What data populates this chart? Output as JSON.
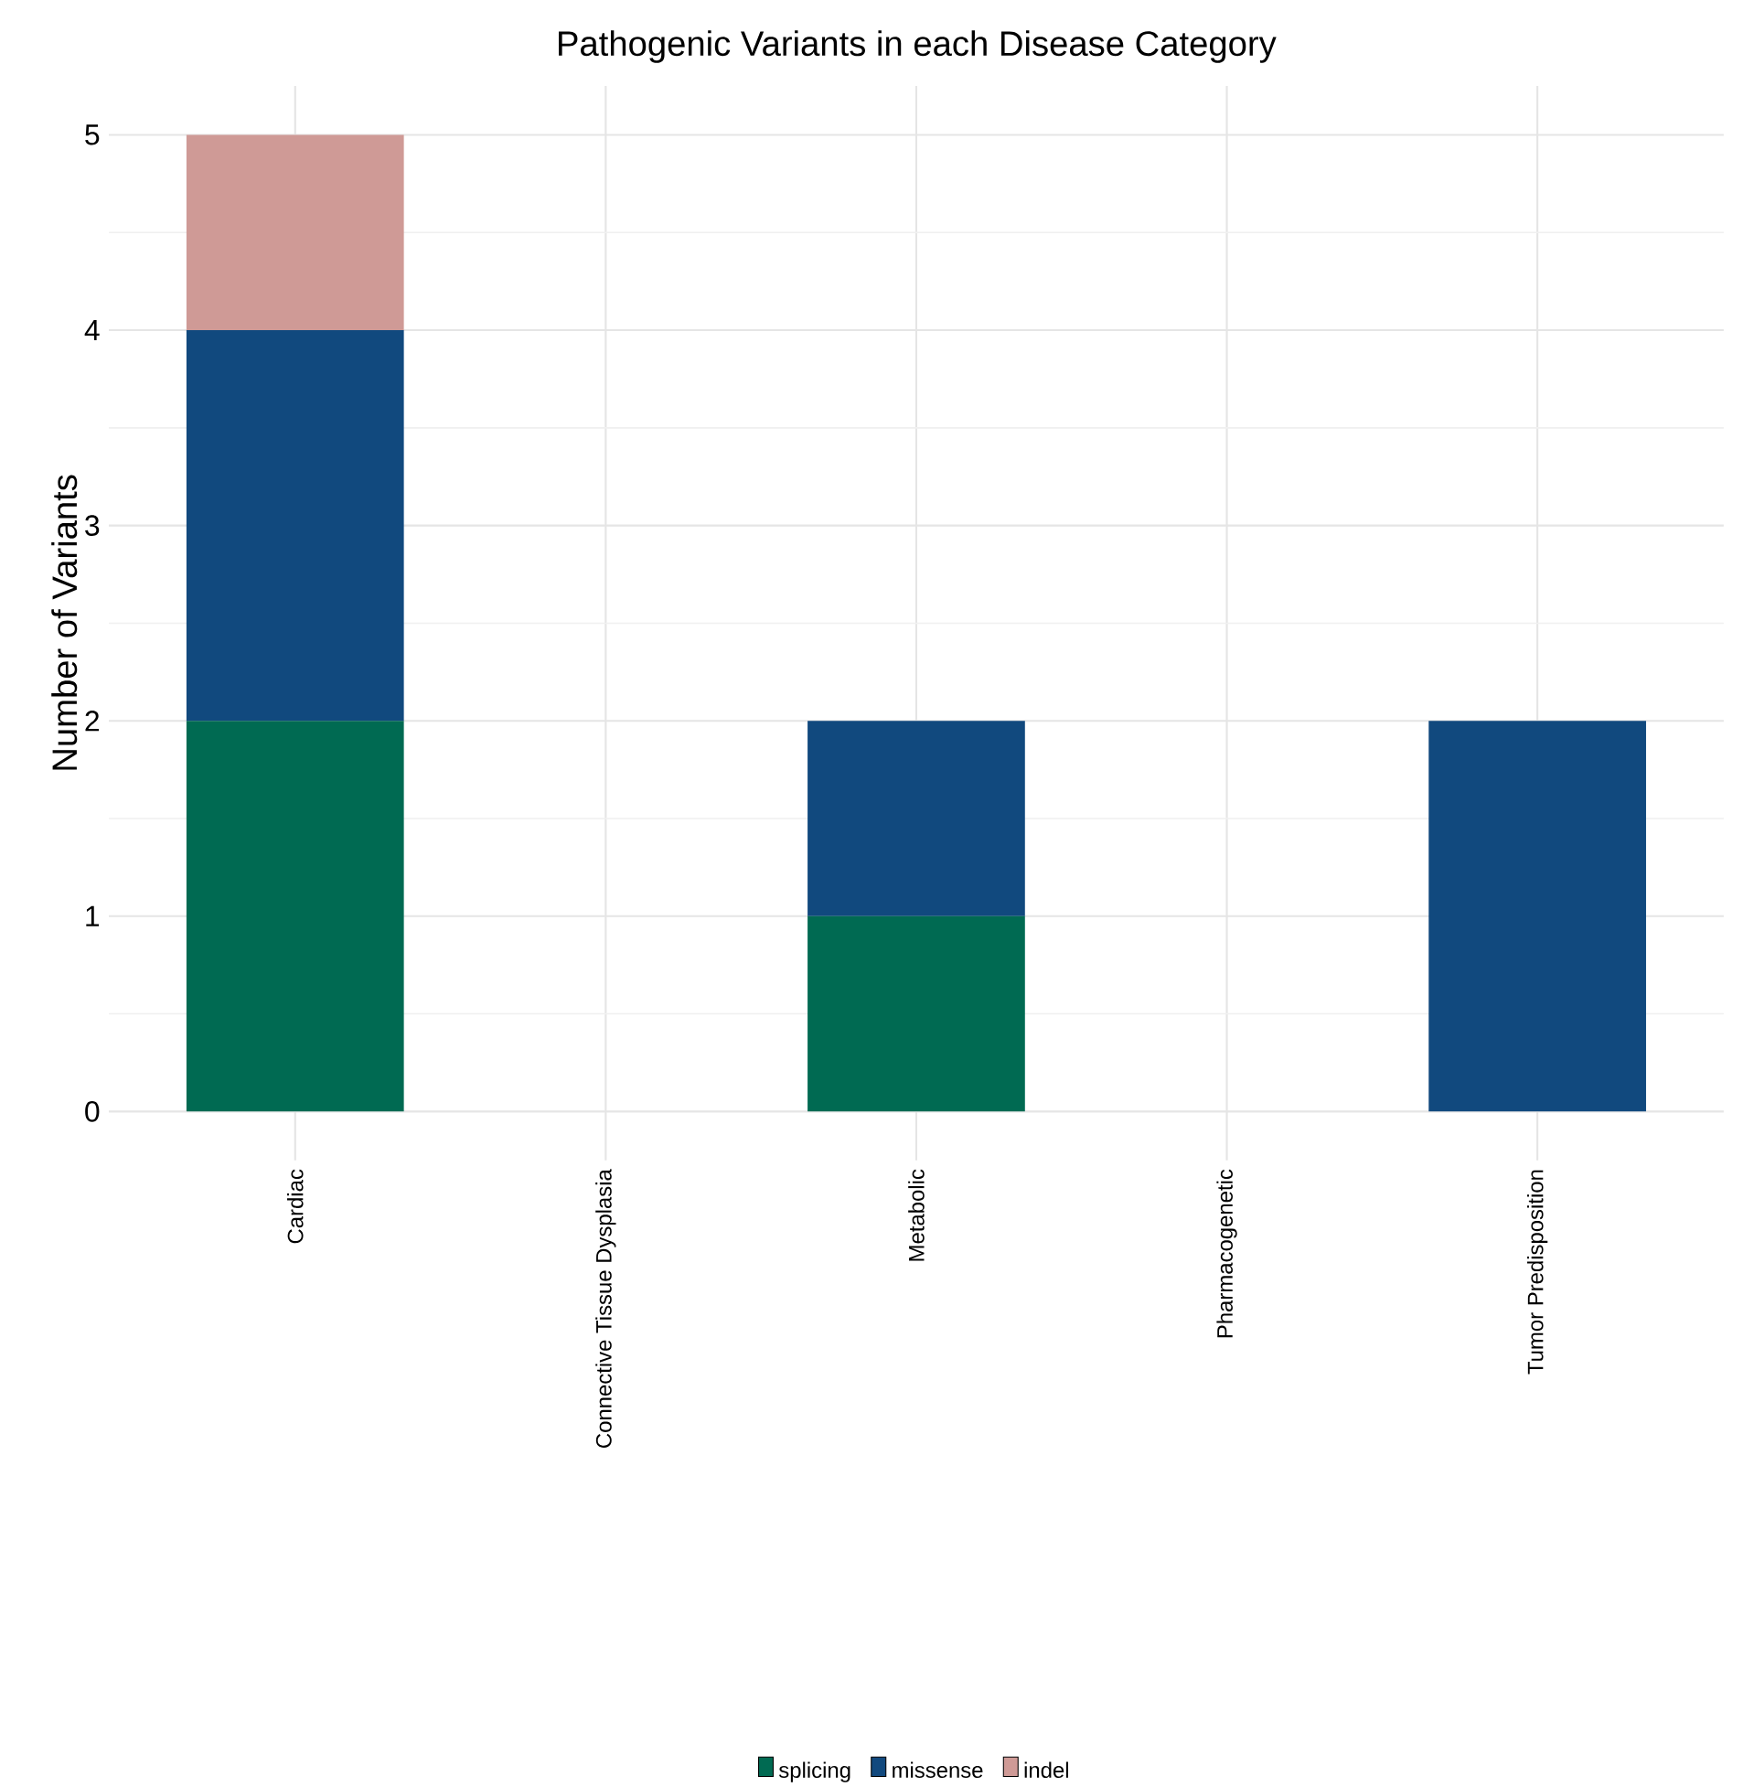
{
  "chart_data": {
    "type": "bar",
    "title": "Pathogenic Variants in each Disease Category",
    "ylabel": "Number of Variants",
    "categories": [
      "Cardiac",
      "Connective Tissue Dysplasia",
      "Metabolic",
      "Pharmacogenetic",
      "Tumor Predisposition"
    ],
    "stacked": true,
    "series": [
      {
        "name": "splicing",
        "color": "#006a52",
        "values": [
          2,
          0,
          1,
          0,
          0
        ]
      },
      {
        "name": "missense",
        "color": "#11497e",
        "values": [
          2,
          0,
          1,
          0,
          2
        ]
      },
      {
        "name": "indel",
        "color": "#cf9a96",
        "values": [
          1,
          0,
          0,
          0,
          0
        ]
      }
    ],
    "ylim": [
      -0.25,
      5.25
    ],
    "yticks": [
      0,
      1,
      2,
      3,
      4,
      5
    ],
    "grid": true,
    "legend": "bottom"
  }
}
